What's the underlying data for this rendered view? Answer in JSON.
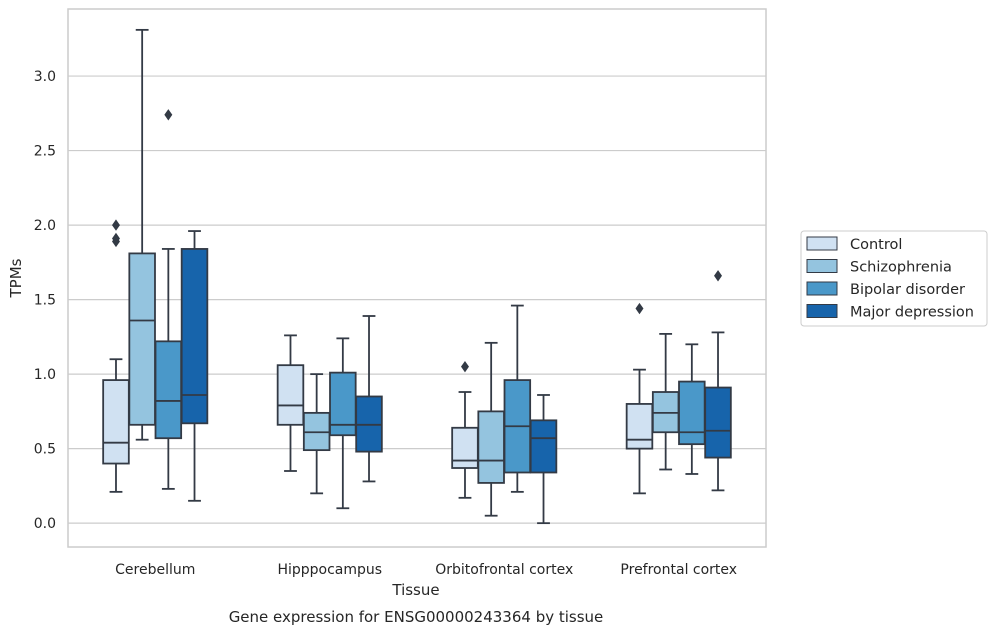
{
  "chart_data": {
    "type": "boxplot",
    "xlabel": "Tissue",
    "ylabel": "TPMs",
    "caption": "Gene expression for ENSG00000243364 by tissue",
    "ylim": [
      -0.16,
      3.45
    ],
    "yticks": [
      "0.0",
      "0.5",
      "1.0",
      "1.5",
      "2.0",
      "2.5",
      "3.0"
    ],
    "grid": true,
    "legend_position": "right",
    "categories": [
      "Cerebellum",
      "Hipppocampus",
      "Orbitofrontal cortex",
      "Prefrontal cortex"
    ],
    "series": [
      {
        "name": "Control",
        "color": "#d0e1f2",
        "boxes": [
          {
            "whislo": 0.21,
            "q1": 0.4,
            "med": 0.54,
            "q3": 0.96,
            "whishi": 1.1,
            "fliers": [
              1.89,
              1.91,
              2.0
            ]
          },
          {
            "whislo": 0.35,
            "q1": 0.66,
            "med": 0.79,
            "q3": 1.06,
            "whishi": 1.26,
            "fliers": []
          },
          {
            "whislo": 0.17,
            "q1": 0.37,
            "med": 0.42,
            "q3": 0.64,
            "whishi": 0.88,
            "fliers": [
              1.05
            ]
          },
          {
            "whislo": 0.2,
            "q1": 0.5,
            "med": 0.56,
            "q3": 0.8,
            "whishi": 1.03,
            "fliers": [
              1.44
            ]
          }
        ]
      },
      {
        "name": "Schizophrenia",
        "color": "#94c4df",
        "boxes": [
          {
            "whislo": 0.56,
            "q1": 0.66,
            "med": 1.36,
            "q3": 1.81,
            "whishi": 3.31,
            "fliers": []
          },
          {
            "whislo": 0.2,
            "q1": 0.49,
            "med": 0.61,
            "q3": 0.74,
            "whishi": 1.0,
            "fliers": []
          },
          {
            "whislo": 0.05,
            "q1": 0.27,
            "med": 0.42,
            "q3": 0.75,
            "whishi": 1.21,
            "fliers": []
          },
          {
            "whislo": 0.36,
            "q1": 0.61,
            "med": 0.74,
            "q3": 0.88,
            "whishi": 1.27,
            "fliers": []
          }
        ]
      },
      {
        "name": "Bipolar disorder",
        "color": "#4a98c9",
        "boxes": [
          {
            "whislo": 0.23,
            "q1": 0.57,
            "med": 0.82,
            "q3": 1.22,
            "whishi": 1.84,
            "fliers": [
              2.74
            ]
          },
          {
            "whislo": 0.1,
            "q1": 0.59,
            "med": 0.66,
            "q3": 1.01,
            "whishi": 1.24,
            "fliers": []
          },
          {
            "whislo": 0.21,
            "q1": 0.34,
            "med": 0.65,
            "q3": 0.96,
            "whishi": 1.46,
            "fliers": []
          },
          {
            "whislo": 0.33,
            "q1": 0.53,
            "med": 0.61,
            "q3": 0.95,
            "whishi": 1.2,
            "fliers": []
          }
        ]
      },
      {
        "name": "Major depression",
        "color": "#1764ab",
        "boxes": [
          {
            "whislo": 0.15,
            "q1": 0.67,
            "med": 0.86,
            "q3": 1.84,
            "whishi": 1.96,
            "fliers": []
          },
          {
            "whislo": 0.28,
            "q1": 0.48,
            "med": 0.66,
            "q3": 0.85,
            "whishi": 1.39,
            "fliers": []
          },
          {
            "whislo": 0.0,
            "q1": 0.34,
            "med": 0.57,
            "q3": 0.69,
            "whishi": 0.86,
            "fliers": []
          },
          {
            "whislo": 0.22,
            "q1": 0.44,
            "med": 0.62,
            "q3": 0.91,
            "whishi": 1.28,
            "fliers": [
              1.66
            ]
          }
        ]
      }
    ]
  }
}
